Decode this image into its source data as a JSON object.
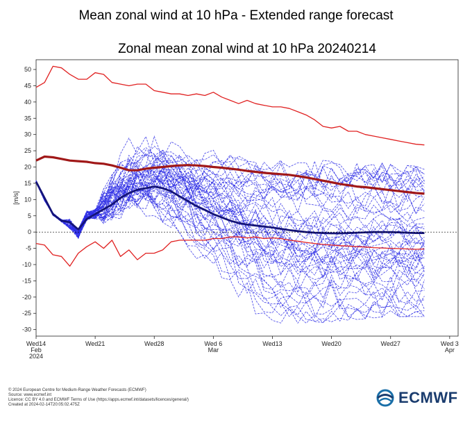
{
  "header": {
    "title": "Mean zonal wind at 10 hPa - Extended range forecast"
  },
  "footer": {
    "lines": [
      "© 2024 European Centre for Medium-Range Weather Forecasts (ECMWF)",
      "Source: www.ecmwf.int",
      "Licence: CC BY 4.0 and ECMWF Terms of Use (https://apps.ecmwf.int/datasets/licences/general/)",
      "Created at 2024-02-14T20:05:02.475Z"
    ],
    "logo_text": "ECMWF"
  },
  "colors": {
    "ensemble": "#2e2ee6",
    "ensemble_mean": "#141478",
    "climate_extremes": "#e02020",
    "climate_mean": "#a01818",
    "zero_line": "#000000"
  },
  "chart_data": {
    "type": "line",
    "title": "Zonal mean zonal wind at 10 hPa 20240214",
    "xlabel": "",
    "ylabel": "[m/s]",
    "ylim": [
      -32,
      53
    ],
    "yticks": [
      -30,
      -25,
      -20,
      -15,
      -10,
      -5,
      0,
      5,
      10,
      15,
      20,
      25,
      30,
      35,
      40,
      45,
      50
    ],
    "xticks": [
      {
        "day": 0,
        "label": "Wed14",
        "sub1": "Feb",
        "sub2": "2024"
      },
      {
        "day": 7,
        "label": "Wed21",
        "sub1": "",
        "sub2": ""
      },
      {
        "day": 14,
        "label": "Wed28",
        "sub1": "",
        "sub2": ""
      },
      {
        "day": 21,
        "label": "Wed 6",
        "sub1": "Mar",
        "sub2": ""
      },
      {
        "day": 28,
        "label": "Wed13",
        "sub1": "",
        "sub2": ""
      },
      {
        "day": 35,
        "label": "Wed20",
        "sub1": "",
        "sub2": ""
      },
      {
        "day": 42,
        "label": "Wed27",
        "sub1": "",
        "sub2": ""
      },
      {
        "day": 49,
        "label": "Wed 3",
        "sub1": "Apr",
        "sub2": ""
      }
    ],
    "xlim": [
      0,
      50
    ],
    "grid": false,
    "series": [
      {
        "role": "climate_max",
        "x": [
          0,
          1,
          2,
          3,
          4,
          5,
          6,
          7,
          8,
          9,
          10,
          11,
          12,
          13,
          14,
          15,
          16,
          17,
          18,
          19,
          20,
          21,
          22,
          23,
          24,
          25,
          26,
          27,
          28,
          29,
          30,
          31,
          32,
          33,
          34,
          35,
          36,
          37,
          38,
          39,
          40,
          41,
          42,
          43,
          44,
          45,
          46
        ],
        "y": [
          44.5,
          46,
          51,
          50.5,
          48.5,
          47,
          47,
          49,
          48.5,
          46,
          45.5,
          45,
          45.5,
          45.5,
          43.5,
          43,
          42.5,
          42.5,
          42,
          42.5,
          42,
          43,
          41.5,
          40.5,
          39.5,
          40.5,
          39.5,
          39,
          38.5,
          38.5,
          38,
          37,
          36,
          34.5,
          32.5,
          32,
          32.5,
          31,
          31,
          30,
          29.5,
          29,
          28.5,
          28,
          27.5,
          27,
          26.8
        ]
      },
      {
        "role": "climate_mean",
        "x": [
          0,
          1,
          2,
          3,
          4,
          5,
          6,
          7,
          8,
          9,
          10,
          11,
          12,
          13,
          14,
          15,
          16,
          17,
          18,
          19,
          20,
          21,
          22,
          23,
          24,
          25,
          26,
          27,
          28,
          29,
          30,
          31,
          32,
          33,
          34,
          35,
          36,
          37,
          38,
          39,
          40,
          41,
          42,
          43,
          44,
          45,
          46
        ],
        "y": [
          22,
          23.2,
          23,
          22.5,
          22,
          21.8,
          21.6,
          21.2,
          21,
          20.5,
          19.8,
          19,
          19,
          19.5,
          19.8,
          20,
          20.3,
          20.5,
          20.6,
          20.5,
          20.3,
          20,
          19.8,
          19.5,
          19.2,
          18.8,
          18.5,
          18.2,
          18,
          17.8,
          17.6,
          17.2,
          16.8,
          16.3,
          15.8,
          15.3,
          14.8,
          14.4,
          14,
          13.8,
          13.5,
          13.2,
          12.9,
          12.6,
          12.3,
          12,
          11.8
        ]
      },
      {
        "role": "climate_min",
        "x": [
          0,
          1,
          2,
          3,
          4,
          5,
          6,
          7,
          8,
          9,
          10,
          11,
          12,
          13,
          14,
          15,
          16,
          17,
          18,
          19,
          20,
          21,
          22,
          23,
          24,
          25,
          26,
          27,
          28,
          29,
          30,
          31,
          32,
          33,
          34,
          35,
          36,
          37,
          38,
          39,
          40,
          41,
          42,
          43,
          44,
          45,
          46
        ],
        "y": [
          -3.5,
          -4,
          -7,
          -7.5,
          -10.5,
          -6.5,
          -4.5,
          -3,
          -5,
          -2.5,
          -7.5,
          -5.5,
          -8.5,
          -6.5,
          -6.5,
          -5.5,
          -3,
          -2.5,
          -2.5,
          -2.5,
          -2.5,
          -2,
          -2,
          -1.5,
          -1.5,
          -1.8,
          -1.5,
          -2,
          -1.8,
          -2,
          -2.5,
          -2.8,
          -3.2,
          -3.5,
          -3.8,
          -4,
          -4.2,
          -4.3,
          -4.5,
          -4.6,
          -4.8,
          -4.9,
          -5,
          -5.1,
          -5.2,
          -5.3,
          -5.2
        ]
      },
      {
        "role": "ensemble_mean",
        "x": [
          0,
          1,
          2,
          3,
          4,
          5,
          6,
          7,
          8,
          9,
          10,
          11,
          12,
          13,
          14,
          15,
          16,
          17,
          18,
          19,
          20,
          21,
          22,
          23,
          24,
          25,
          26,
          27,
          28,
          29,
          30,
          31,
          32,
          33,
          34,
          35,
          36,
          37,
          38,
          39,
          40,
          41,
          42,
          43,
          44,
          45,
          46
        ],
        "y": [
          15.5,
          10.5,
          5.5,
          3.5,
          3,
          0.8,
          4,
          5.5,
          7,
          8.5,
          10.5,
          12,
          13,
          13.5,
          14,
          13.5,
          12.5,
          11,
          9.5,
          8,
          6.8,
          5.5,
          4.5,
          3.5,
          2.8,
          2.3,
          2,
          1.7,
          1.4,
          1,
          0.6,
          0.3,
          0,
          -0.2,
          -0.3,
          -0.4,
          -0.4,
          -0.3,
          -0.2,
          -0.1,
          0,
          0,
          0,
          -0.1,
          -0.2,
          -0.3,
          -0.3
        ]
      }
    ],
    "ensemble": {
      "members": 51,
      "initial": [
        15.5,
        10,
        5.5,
        3.5,
        2.5,
        -0.5,
        5,
        5.5
      ],
      "x_end": 46,
      "spread_min": [
        -4,
        -14,
        -23,
        -28,
        -29,
        -28,
        -28,
        -27,
        -26,
        -26
      ],
      "spread_max": [
        30,
        31,
        30,
        28,
        27,
        26,
        23,
        22,
        21,
        20
      ]
    }
  }
}
